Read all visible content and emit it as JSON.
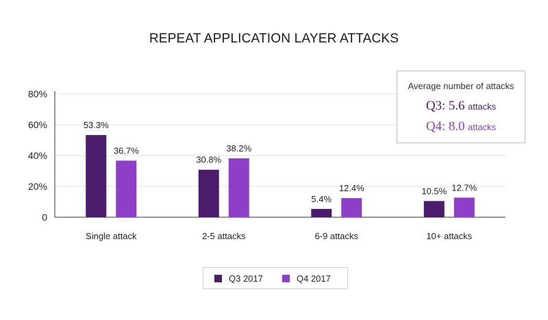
{
  "chart_data": {
    "type": "bar",
    "title": "REPEAT APPLICATION LAYER ATTACKS",
    "categories": [
      "Single attack",
      "2-5 attacks",
      "6-9 attacks",
      "10+ attacks"
    ],
    "series": [
      {
        "name": "Q3 2017",
        "color": "#4b1c6b",
        "values": [
          53.3,
          30.8,
          5.4,
          10.5
        ],
        "labels": [
          "53.3%",
          "30.8%",
          "5.4%",
          "10.5%"
        ]
      },
      {
        "name": "Q4 2017",
        "color": "#8e3fc8",
        "values": [
          36.7,
          38.2,
          12.4,
          12.7
        ],
        "labels": [
          "36.7%",
          "38.2%",
          "12.4%",
          "12.7%"
        ]
      }
    ],
    "ylim": [
      0,
      80
    ],
    "yticks": [
      0,
      20,
      40,
      60,
      80
    ],
    "ytick_labels": [
      "0",
      "20%",
      "40%",
      "60%",
      "80%"
    ],
    "xlabel": "",
    "ylabel": "",
    "grid": true,
    "legend": "bottom"
  },
  "average_box": {
    "heading": "Average number of attacks",
    "q3_label": "Q3:",
    "q3_value": "5.6",
    "q3_unit": "attacks",
    "q4_label": "Q4:",
    "q4_value": "8.0",
    "q4_unit": "attacks"
  }
}
